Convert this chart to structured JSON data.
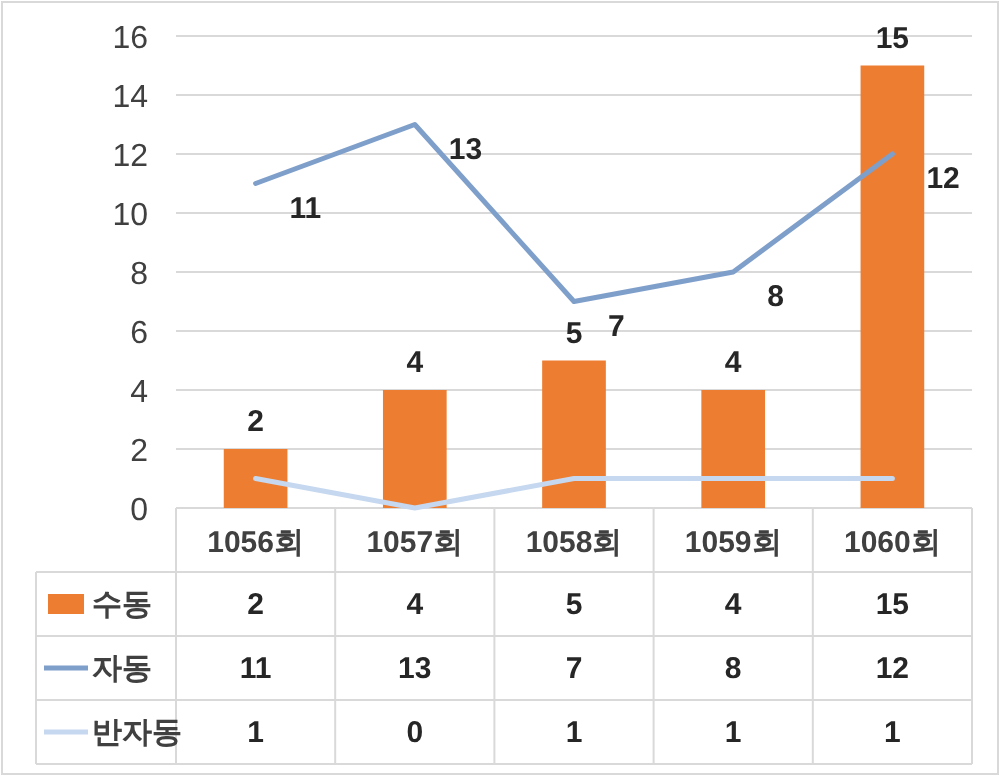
{
  "chart_data": {
    "type": "bar",
    "categories": [
      "1056회",
      "1057회",
      "1058회",
      "1059회",
      "1060회"
    ],
    "series": [
      {
        "name": "수동",
        "color": "#ed7d31",
        "values": [
          2,
          4,
          5,
          4,
          15
        ]
      },
      {
        "name": "자동",
        "type": "line",
        "color": "#7f9fcb",
        "values": [
          11,
          13,
          7,
          8,
          12
        ]
      },
      {
        "name": "반자동",
        "type": "line",
        "color": "#c5d8ef",
        "values": [
          1,
          0,
          1,
          1,
          1
        ]
      }
    ],
    "annotations": [
      {
        "text": "2",
        "x": "1056회",
        "y": 2
      },
      {
        "text": "4",
        "x": "1057회",
        "y": 4
      },
      {
        "text": "5",
        "x": "1058회",
        "y": 5
      },
      {
        "text": "4",
        "x": "1059회",
        "y": 4
      },
      {
        "text": "15",
        "x": "1060회",
        "y": 15
      },
      {
        "text": "11",
        "x": "1056회",
        "y": 11
      },
      {
        "text": "13",
        "x": "1057회",
        "y": 13
      },
      {
        "text": "7",
        "x": "1058회",
        "y": 7
      },
      {
        "text": "8",
        "x": "1059회",
        "y": 8
      },
      {
        "text": "12",
        "x": "1060회",
        "y": 12
      }
    ],
    "ylim": [
      0,
      16
    ],
    "yticks": [
      0,
      2,
      4,
      6,
      8,
      10,
      12,
      14,
      16
    ],
    "grid": "y",
    "data_labels": true,
    "legend": "bottom"
  }
}
